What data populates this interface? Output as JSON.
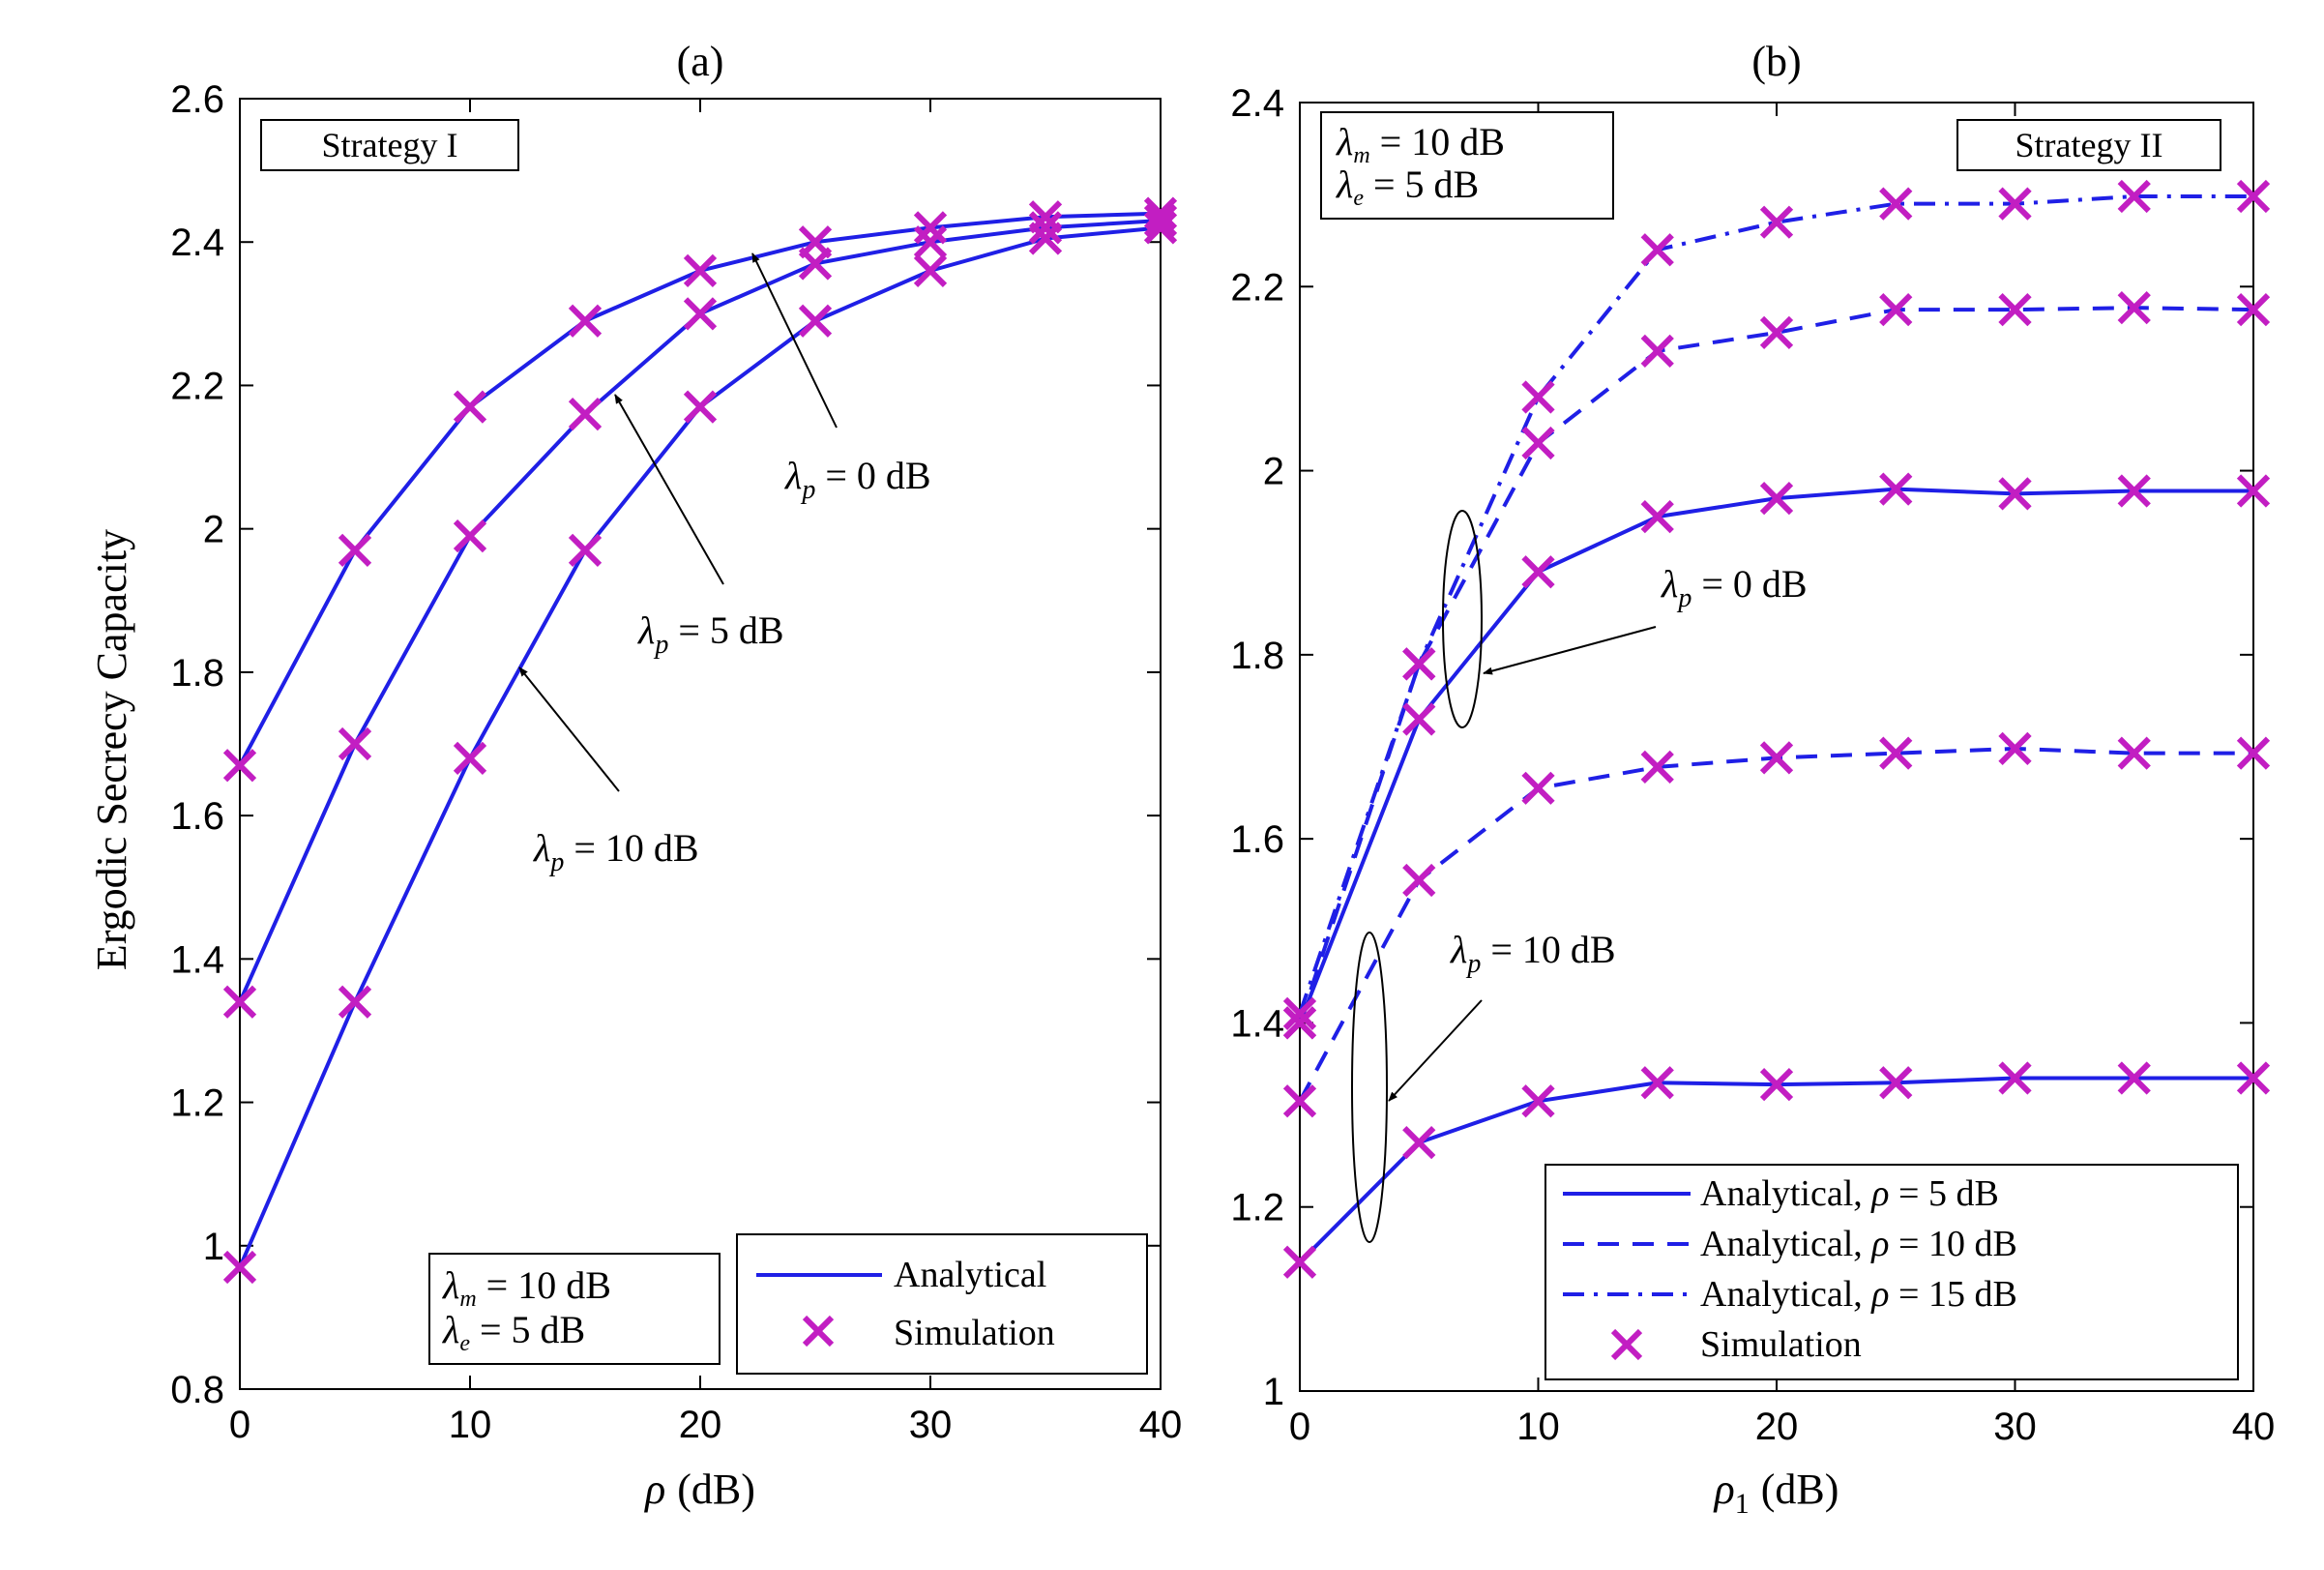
{
  "figure": {
    "ylabel": "Ergodic Secrecy Capacity",
    "colors": {
      "line": "#1f1fe6",
      "marker": "#c21ec2",
      "axis": "#000000"
    }
  },
  "chart_data": [
    {
      "id": "a",
      "type": "line",
      "title": "(a)",
      "xlabel_var": "ρ",
      "xlabel_unit": "(dB)",
      "ylabel": "Ergodic Secrecy Capacity",
      "xlim": [
        0,
        40
      ],
      "ylim": [
        0.8,
        2.6
      ],
      "xticks": [
        "0",
        "10",
        "20",
        "30",
        "40"
      ],
      "yticks": [
        "0.8",
        "1",
        "1.2",
        "1.4",
        "1.6",
        "1.8",
        "2",
        "2.2",
        "2.4",
        "2.6"
      ],
      "ytick_values": [
        0.8,
        1.0,
        1.2,
        1.4,
        1.6,
        1.8,
        2.0,
        2.2,
        2.4,
        2.6
      ],
      "xtick_values": [
        0,
        10,
        20,
        30,
        40
      ],
      "x": [
        0,
        5,
        10,
        15,
        20,
        25,
        30,
        35,
        40
      ],
      "series": [
        {
          "name": "λp = 0 dB",
          "style": "solid",
          "values": [
            1.67,
            1.97,
            2.17,
            2.29,
            2.36,
            2.4,
            2.42,
            2.435,
            2.44
          ]
        },
        {
          "name": "λp = 5 dB",
          "style": "solid",
          "values": [
            1.34,
            1.7,
            1.99,
            2.16,
            2.3,
            2.37,
            2.4,
            2.42,
            2.43
          ]
        },
        {
          "name": "λp = 10 dB",
          "style": "solid",
          "values": [
            0.97,
            1.34,
            1.68,
            1.97,
            2.17,
            2.29,
            2.36,
            2.405,
            2.42
          ]
        }
      ],
      "annotations": {
        "strategy": "Strategy I",
        "params": {
          "lm_label": "λ",
          "lm_sub": "m",
          "lm_value": "= 10 dB",
          "le_label": "λ",
          "le_sub": "e",
          "le_value": "= 5 dB"
        },
        "curves": [
          {
            "label": "λ",
            "sub": "p",
            "value": "= 0 dB"
          },
          {
            "label": "λ",
            "sub": "p",
            "value": "= 5 dB"
          },
          {
            "label": "λ",
            "sub": "p",
            "value": "= 10 dB"
          }
        ]
      },
      "legend": {
        "position": "bottom-right",
        "entries": [
          "Analytical",
          "Simulation"
        ]
      }
    },
    {
      "id": "b",
      "type": "line",
      "title": "(b)",
      "xlabel_var": "ρ",
      "xlabel_sub": "1",
      "xlabel_unit": "(dB)",
      "xlim": [
        0,
        40
      ],
      "ylim": [
        1.0,
        2.4
      ],
      "xticks": [
        "0",
        "10",
        "20",
        "30",
        "40"
      ],
      "yticks": [
        "1",
        "1.2",
        "1.4",
        "1.6",
        "1.8",
        "2",
        "2.2",
        "2.4"
      ],
      "ytick_values": [
        1.0,
        1.2,
        1.4,
        1.6,
        1.8,
        2.0,
        2.2,
        2.4
      ],
      "xtick_values": [
        0,
        10,
        20,
        30,
        40
      ],
      "x": [
        0,
        5,
        10,
        15,
        20,
        25,
        30,
        35,
        40
      ],
      "series": [
        {
          "name": "Analytical, ρ = 5 dB (λp = 0 dB)",
          "style": "solid",
          "values": [
            1.4,
            1.73,
            1.89,
            1.95,
            1.97,
            1.98,
            1.975,
            1.978,
            1.978
          ]
        },
        {
          "name": "Analytical, ρ = 10 dB (λp = 0 dB)",
          "style": "dashed",
          "values": [
            1.4,
            1.79,
            2.03,
            2.13,
            2.15,
            2.175,
            2.175,
            2.177,
            2.175
          ]
        },
        {
          "name": "Analytical, ρ = 15 dB (λp = 0 dB)",
          "style": "dashdot",
          "values": [
            1.41,
            1.79,
            2.08,
            2.24,
            2.27,
            2.29,
            2.29,
            2.298,
            2.298
          ]
        },
        {
          "name": "Analytical, ρ = 5 dB (λp = 10 dB)",
          "style": "solid",
          "values": [
            1.14,
            1.27,
            1.315,
            1.335,
            1.333,
            1.335,
            1.34,
            1.34,
            1.34
          ]
        },
        {
          "name": "Analytical, ρ = 10 dB (λp = 10 dB)",
          "style": "dashed",
          "values": [
            1.315,
            1.555,
            1.655,
            1.678,
            1.688,
            1.693,
            1.698,
            1.693,
            1.693
          ]
        }
      ],
      "annotations": {
        "strategy": "Strategy II",
        "params": {
          "lm_label": "λ",
          "lm_sub": "m",
          "lm_value": "= 10 dB",
          "le_label": "λ",
          "le_sub": "e",
          "le_value": "= 5 dB"
        },
        "curves": [
          {
            "label": "λ",
            "sub": "p",
            "value": "= 0 dB"
          },
          {
            "label": "λ",
            "sub": "p",
            "value": "= 10 dB"
          }
        ]
      },
      "legend": {
        "position": "bottom-right",
        "entries": [
          {
            "prefix": "Analytical, ",
            "var": "ρ",
            "value": " = 5 dB",
            "style": "solid"
          },
          {
            "prefix": "Analytical, ",
            "var": "ρ",
            "value": " = 10 dB",
            "style": "dashed"
          },
          {
            "prefix": "Analytical, ",
            "var": "ρ",
            "value": " = 15 dB",
            "style": "dashdot"
          },
          {
            "prefix": "Simulation",
            "var": "",
            "value": "",
            "style": "marker"
          }
        ]
      }
    }
  ]
}
